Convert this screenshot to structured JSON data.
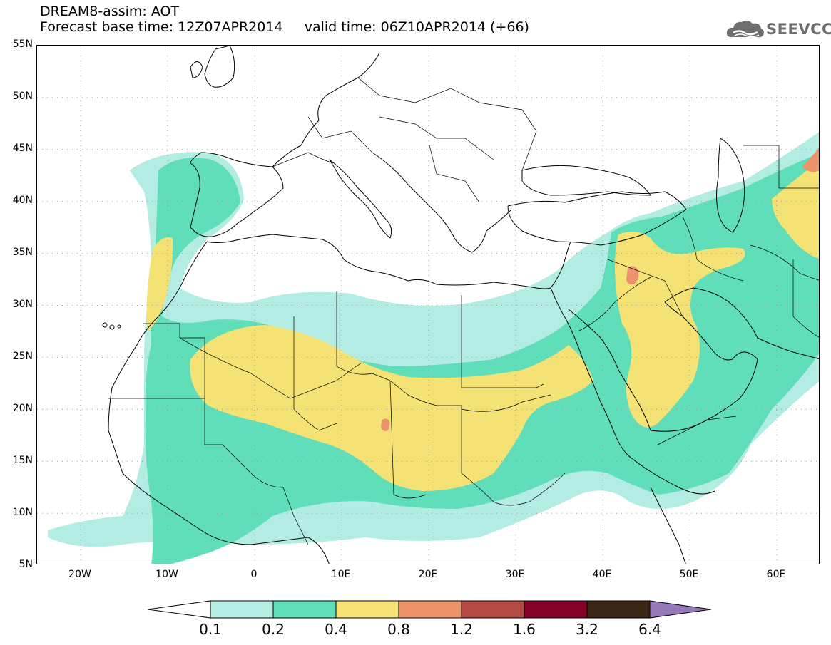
{
  "title_line1": "DREAM8-assim: AOT",
  "title_line2": "Forecast base time: 12Z07APR2014     valid time: 06Z10APR2014 (+66)",
  "logo": {
    "text": "SEEVCCC",
    "icon": "cloud-logo-icon"
  },
  "map": {
    "lon_range": [
      -25,
      65
    ],
    "lat_range": [
      5,
      55
    ],
    "lat_labels": [
      "55N",
      "50N",
      "45N",
      "40N",
      "35N",
      "30N",
      "25N",
      "20N",
      "15N",
      "10N",
      "5N"
    ],
    "lon_labels": [
      "20W",
      "10W",
      "0",
      "10E",
      "20E",
      "30E",
      "40E",
      "50E",
      "60E"
    ],
    "gridlines": "dotted"
  },
  "colorbar": {
    "levels": [
      "0.1",
      "0.2",
      "0.4",
      "0.8",
      "1.2",
      "1.6",
      "3.2",
      "6.4"
    ],
    "colors": [
      "#b3ece2",
      "#5fdeb9",
      "#f4e275",
      "#ec936c",
      "#b44a43",
      "#850029",
      "#3b2514",
      "#9478b8"
    ],
    "under_color": "#ffffff"
  }
}
